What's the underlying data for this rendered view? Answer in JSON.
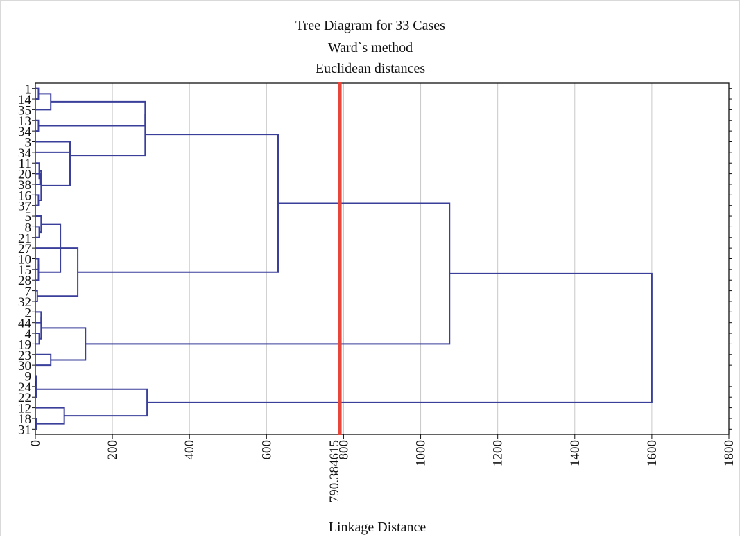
{
  "chart_data": {
    "type": "dendrogram",
    "orientation": "horizontal",
    "title": [
      "Tree Diagram for 33 Cases",
      "Ward`s method",
      "Euclidean distances"
    ],
    "xlabel": "Linkage Distance",
    "xlim": [
      0,
      1800
    ],
    "xticks": [
      0,
      200,
      400,
      600,
      800,
      1000,
      1200,
      1400,
      1600,
      1800
    ],
    "grid": true,
    "cut_line": {
      "value": 790.384615,
      "label": "790.384615",
      "color": "#e8463b"
    },
    "link_color": "#3a3f9a",
    "case_labels": [
      "1",
      "14",
      "35",
      "13",
      "34",
      "3",
      "34",
      "11",
      "20",
      "38",
      "16",
      "37",
      "5",
      "8",
      "21",
      "27",
      "10",
      "15",
      "28",
      "7",
      "32",
      "2",
      "44",
      "4",
      "19",
      "23",
      "30",
      "9",
      "24",
      "22",
      "12",
      "18",
      "31"
    ],
    "links": [
      {
        "id": "A1",
        "a": 0,
        "b": 1,
        "h": 8
      },
      {
        "id": "A2",
        "a": "A1",
        "b": 2,
        "h": 40
      },
      {
        "id": "A3",
        "a": 3,
        "b": 4,
        "h": 8
      },
      {
        "id": "A4",
        "a": "A2",
        "b": "A3",
        "h": 285
      },
      {
        "id": "B1",
        "a": 8,
        "b": 9,
        "h": 12
      },
      {
        "id": "B2",
        "a": 7,
        "b": "B1",
        "h": 10
      },
      {
        "id": "B3",
        "a": 10,
        "b": 11,
        "h": 8
      },
      {
        "id": "B4",
        "a": "B2",
        "b": "B3",
        "h": 15
      },
      {
        "id": "B5",
        "a": 6,
        "b": "B4",
        "h": 90
      },
      {
        "id": "B6",
        "a": 5,
        "b": "B5",
        "h": 90
      },
      {
        "id": "C1",
        "a": "A4",
        "b": "B6",
        "h": 285
      },
      {
        "id": "D1",
        "a": 13,
        "b": 14,
        "h": 10
      },
      {
        "id": "D2",
        "a": 12,
        "b": "D1",
        "h": 15
      },
      {
        "id": "D3",
        "a": 16,
        "b": 17,
        "h": 8
      },
      {
        "id": "D4",
        "a": 18,
        "b": "D3",
        "h": 8
      },
      {
        "id": "D5",
        "a": "D2",
        "b": "D4",
        "h": 65
      },
      {
        "id": "D6",
        "a": 15,
        "b": "D5",
        "h": 65
      },
      {
        "id": "D7",
        "a": 19,
        "b": 20,
        "h": 5
      },
      {
        "id": "D8",
        "a": "D6",
        "b": "D7",
        "h": 110
      },
      {
        "id": "E1",
        "a": "C1",
        "b": "D8",
        "h": 630
      },
      {
        "id": "F1",
        "a": 21,
        "b": 22,
        "h": 15
      },
      {
        "id": "F2",
        "a": 23,
        "b": 24,
        "h": 10
      },
      {
        "id": "F3",
        "a": "F1",
        "b": "F2",
        "h": 15
      },
      {
        "id": "F4",
        "a": 25,
        "b": 26,
        "h": 40
      },
      {
        "id": "F5",
        "a": "F3",
        "b": "F4",
        "h": 130
      },
      {
        "id": "G1",
        "a": "E1",
        "b": "F5",
        "h": 1075
      },
      {
        "id": "H1",
        "a": 27,
        "b": 28,
        "h": 3
      },
      {
        "id": "H2",
        "a": 29,
        "b": "H1",
        "h": 3
      },
      {
        "id": "H3",
        "a": 31,
        "b": 32,
        "h": 3
      },
      {
        "id": "H4",
        "a": 30,
        "b": "H3",
        "h": 75
      },
      {
        "id": "H5",
        "a": "H2",
        "b": "H4",
        "h": 290
      },
      {
        "id": "R",
        "a": "G1",
        "b": "H5",
        "h": 1600
      }
    ]
  }
}
